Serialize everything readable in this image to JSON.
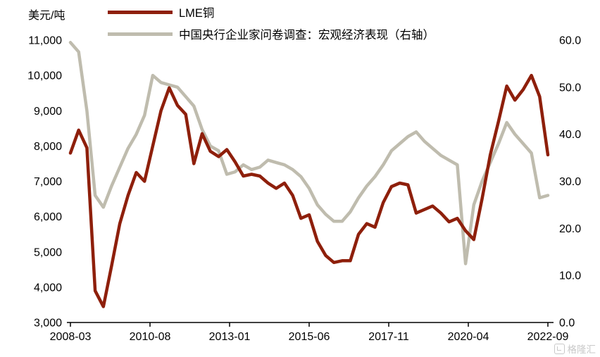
{
  "axis_titles": {
    "left": "美元/吨"
  },
  "legend": [
    {
      "label": "LME铜",
      "color": "#8E1F0B"
    },
    {
      "label": "中国央行企业家问卷调查：宏观经济表现（右轴）",
      "color": "#BFBCAE"
    }
  ],
  "watermark": {
    "text": "格隆汇"
  },
  "chart_data": {
    "type": "line",
    "title": "",
    "x_unit": "months since 2008-03, quarterly points",
    "x": [
      0,
      3,
      6,
      9,
      12,
      15,
      18,
      21,
      24,
      27,
      30,
      33,
      36,
      39,
      42,
      45,
      48,
      51,
      54,
      57,
      60,
      63,
      66,
      69,
      72,
      75,
      78,
      81,
      84,
      87,
      90,
      93,
      96,
      99,
      102,
      105,
      108,
      111,
      114,
      117,
      120,
      123,
      126,
      129,
      132,
      135,
      138,
      141,
      144,
      147,
      150,
      153,
      156,
      159,
      162,
      165,
      168,
      171,
      174
    ],
    "x_tick_positions": [
      0,
      29,
      58,
      87,
      116,
      145,
      174
    ],
    "x_tick_labels": [
      "2008-03",
      "2010-08",
      "2013-01",
      "2015-06",
      "2017-11",
      "2020-04",
      "2022-09"
    ],
    "left_axis": {
      "min": 3000,
      "max": 11000,
      "tick_step": 1000,
      "tick_labels": [
        "3,000",
        "4,000",
        "5,000",
        "6,000",
        "7,000",
        "8,000",
        "9,000",
        "10,000",
        "11,000"
      ]
    },
    "right_axis": {
      "min": 0,
      "max": 60,
      "tick_step": 10,
      "tick_labels": [
        "0.0",
        "10.0",
        "20.0",
        "30.0",
        "40.0",
        "50.0",
        "60.0"
      ]
    },
    "grid": false,
    "legend_position": "top-left",
    "series": [
      {
        "name": "LME铜",
        "axis": "left",
        "color": "#8E1F0B",
        "values": [
          7800,
          8450,
          7950,
          3900,
          3450,
          4600,
          5800,
          6600,
          7250,
          7000,
          8000,
          9000,
          9650,
          9150,
          8900,
          7500,
          8350,
          7850,
          7700,
          7900,
          7550,
          7150,
          7200,
          7150,
          6950,
          6800,
          6950,
          6600,
          5950,
          6050,
          5300,
          4900,
          4700,
          4750,
          4750,
          5500,
          5800,
          5700,
          6400,
          6850,
          6950,
          6900,
          6100,
          6200,
          6300,
          6100,
          5850,
          5950,
          5600,
          5350,
          6500,
          7750,
          8700,
          9700,
          9300,
          9600,
          10000,
          9400,
          7750
        ]
      },
      {
        "name": "中国央行企业家问卷调查：宏观经济表现（右轴）",
        "axis": "right",
        "color": "#BFBCAE",
        "values": [
          59.5,
          57.5,
          45,
          27,
          24.5,
          29,
          33,
          37,
          40,
          44,
          52.5,
          51,
          50.5,
          50,
          48,
          46,
          41,
          37.5,
          36.5,
          31.5,
          32,
          33.5,
          32.5,
          33,
          34.5,
          34,
          33.5,
          32.5,
          31,
          28.5,
          25,
          23,
          21.5,
          21.5,
          23.5,
          26.5,
          29,
          31,
          33.5,
          36.5,
          38,
          39.5,
          40.5,
          38.5,
          37,
          35.5,
          34.5,
          33.5,
          12.5,
          25,
          30,
          34,
          38,
          42.5,
          40,
          38,
          36,
          26.5,
          27
        ]
      }
    ]
  }
}
